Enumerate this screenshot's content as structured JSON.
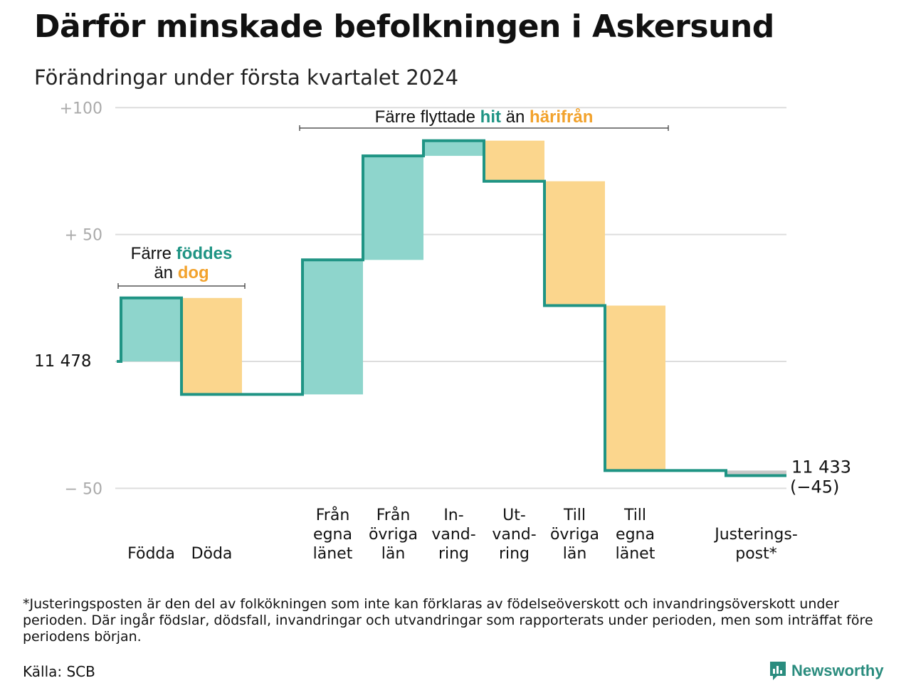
{
  "title": "Därför minskade befolkningen i Askersund",
  "subtitle": "Förändringar under första kvartalet 2024",
  "footnote": "*Justeringsposten är den del av folkökningen som inte kan förklaras av födelseöverskott och invandringsöverskott under perioden. Där ingår födslar, dödsfall, invandringar och utvandringar som rapporterats under perioden, men som inträffat före periodens början.",
  "source": "Källa: SCB",
  "brand": "Newsworthy",
  "colors": {
    "increase": "#8ed5cc",
    "decrease": "#fbd68d",
    "adjustment": "#c8c8c8",
    "line": "#1f9484",
    "teal_text": "#1f9484",
    "orange_text": "#f2a22c",
    "grid": "#dddddd",
    "tick_text": "#aaaaaa"
  },
  "chart_data": {
    "type": "waterfall",
    "start_value": 11478,
    "start_label": "11  478",
    "end_value": 11433,
    "end_label": "11 433",
    "end_change_label": "(−45)",
    "ylim": [
      -50,
      100
    ],
    "yticks": [
      {
        "value": 100,
        "label": "+100"
      },
      {
        "value": 50,
        "label": "+  50"
      },
      {
        "value": 0,
        "label": ""
      },
      {
        "value": -50,
        "label": "−  50"
      }
    ],
    "steps": [
      {
        "label": [
          "Födda"
        ],
        "delta": 25,
        "kind": "increase"
      },
      {
        "label": [
          "Döda"
        ],
        "delta": -38,
        "kind": "decrease"
      },
      {
        "label": [
          ""
        ],
        "delta": 0,
        "kind": "gap"
      },
      {
        "label": [
          "Från",
          "egna",
          "länet"
        ],
        "delta": 53,
        "kind": "increase"
      },
      {
        "label": [
          "Från",
          "övriga",
          "län"
        ],
        "delta": 41,
        "kind": "increase"
      },
      {
        "label": [
          "In-",
          "vand-",
          "ring"
        ],
        "delta": 6,
        "kind": "increase"
      },
      {
        "label": [
          "Ut-",
          "vand-",
          "ring"
        ],
        "delta": -16,
        "kind": "decrease"
      },
      {
        "label": [
          "Till",
          "övriga",
          "län"
        ],
        "delta": -49,
        "kind": "decrease"
      },
      {
        "label": [
          "Till",
          "egna",
          "länet"
        ],
        "delta": -65,
        "kind": "decrease"
      },
      {
        "label": [
          ""
        ],
        "delta": 0,
        "kind": "gap"
      },
      {
        "label": [
          "Justerings-",
          "post*"
        ],
        "delta": -2,
        "kind": "adjustment"
      }
    ],
    "annotations": [
      {
        "parts": [
          {
            "text": "Färre ",
            "color": "dark",
            "bold": false
          },
          {
            "text": "föddes",
            "color": "teal",
            "bold": true
          }
        ],
        "parts2": [
          {
            "text": "än ",
            "color": "dark",
            "bold": false
          },
          {
            "text": "dog",
            "color": "orange",
            "bold": true
          }
        ],
        "from_step": 0,
        "to_step": 1
      },
      {
        "parts": [
          {
            "text": "Färre flyttade ",
            "color": "dark",
            "bold": false
          },
          {
            "text": "hit",
            "color": "teal",
            "bold": true
          },
          {
            "text": " än ",
            "color": "dark",
            "bold": false
          },
          {
            "text": "härifrån",
            "color": "orange",
            "bold": true
          }
        ],
        "from_step": 3,
        "to_step": 8
      }
    ]
  }
}
